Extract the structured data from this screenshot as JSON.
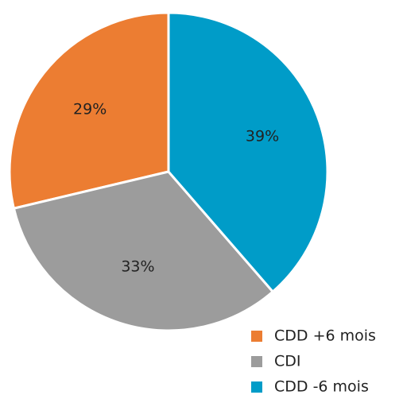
{
  "chart_data": {
    "type": "pie",
    "categories": [
      "CDD +6 mois",
      "CDI",
      "CDD -6 mois"
    ],
    "values": [
      29,
      33,
      39
    ],
    "value_labels": [
      "29%",
      "33%",
      "39%"
    ],
    "colors": [
      "#ec7d32",
      "#9c9c9c",
      "#009cc8"
    ],
    "legend": "bottom-right"
  }
}
